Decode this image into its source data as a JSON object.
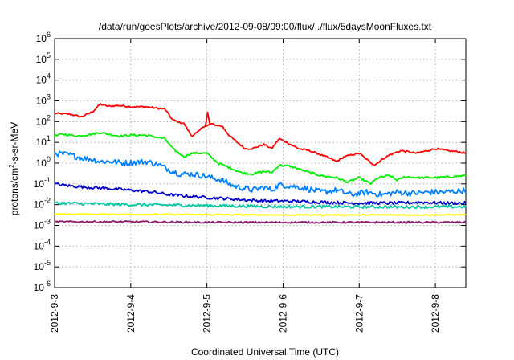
{
  "chart_data": {
    "type": "line",
    "title": "/data/run/goesPlots/archive/2012-09-08/09:00/flux/../flux/5daysMoonFluxes.txt",
    "xlabel": "Coordinated Universal Time (UTC)",
    "ylabel": {
      "base": "protons/cm",
      "exp": "2",
      "rest": "-s-sr-MeV"
    },
    "yscale": "log",
    "ylim_exp": [
      -6,
      6
    ],
    "xlim_days": [
      0,
      5.4
    ],
    "grid": true,
    "x_ticks": [
      {
        "day": 0,
        "label": "2012-9-3"
      },
      {
        "day": 1,
        "label": "2012-9-4"
      },
      {
        "day": 2,
        "label": "2012-9-5"
      },
      {
        "day": 3,
        "label": "2012-9-6"
      },
      {
        "day": 4,
        "label": "2012-9-7"
      },
      {
        "day": 5,
        "label": "2012-9-8"
      }
    ],
    "y_ticks": [
      {
        "exp": 6,
        "base": "10",
        "sup": "6"
      },
      {
        "exp": 5,
        "base": "10",
        "sup": "5"
      },
      {
        "exp": 4,
        "base": "10",
        "sup": "4"
      },
      {
        "exp": 3,
        "base": "10",
        "sup": "3"
      },
      {
        "exp": 2,
        "base": "10",
        "sup": "2"
      },
      {
        "exp": 1,
        "base": "10",
        "sup": "1"
      },
      {
        "exp": 0,
        "base": "10",
        "sup": "0"
      },
      {
        "exp": -1,
        "base": "10",
        "sup": "-1"
      },
      {
        "exp": -2,
        "base": "10",
        "sup": "-2"
      },
      {
        "exp": -3,
        "base": "10",
        "sup": "-3"
      },
      {
        "exp": -4,
        "base": "10",
        "sup": "-4"
      },
      {
        "exp": -5,
        "base": "10",
        "sup": "-5"
      },
      {
        "exp": -6,
        "base": "10",
        "sup": "-6"
      }
    ],
    "series": [
      {
        "color": "#ff0000",
        "noise": 0.04,
        "values": [
          [
            0,
            250
          ],
          [
            0.2,
            230
          ],
          [
            0.35,
            170
          ],
          [
            0.5,
            300
          ],
          [
            0.6,
            700
          ],
          [
            0.7,
            550
          ],
          [
            0.85,
            600
          ],
          [
            1.0,
            520
          ],
          [
            1.2,
            520
          ],
          [
            1.45,
            400
          ],
          [
            1.55,
            120
          ],
          [
            1.7,
            80
          ],
          [
            1.8,
            20
          ],
          [
            1.9,
            35
          ],
          [
            1.95,
            60
          ],
          [
            2.0,
            60
          ],
          [
            2.05,
            80
          ],
          [
            2.1,
            70
          ],
          [
            2.2,
            60
          ],
          [
            2.3,
            20
          ],
          [
            2.4,
            10
          ],
          [
            2.5,
            5
          ],
          [
            2.6,
            5
          ],
          [
            2.75,
            8
          ],
          [
            2.85,
            5
          ],
          [
            2.95,
            15
          ],
          [
            3.05,
            10
          ],
          [
            3.2,
            5
          ],
          [
            3.35,
            4
          ],
          [
            3.5,
            2.5
          ],
          [
            3.6,
            1.8
          ],
          [
            3.7,
            1.2
          ],
          [
            3.8,
            2
          ],
          [
            3.9,
            2.5
          ],
          [
            4.0,
            3
          ],
          [
            4.1,
            1.5
          ],
          [
            4.2,
            0.8
          ],
          [
            4.3,
            1.5
          ],
          [
            4.4,
            2.5
          ],
          [
            4.55,
            4
          ],
          [
            4.75,
            3
          ],
          [
            4.9,
            4
          ],
          [
            5.0,
            5
          ],
          [
            5.15,
            4
          ],
          [
            5.3,
            3.5
          ],
          [
            5.4,
            3
          ]
        ]
      },
      {
        "color": "#00ee00",
        "noise": 0.05,
        "values": [
          [
            0,
            20
          ],
          [
            0.1,
            25
          ],
          [
            0.3,
            20
          ],
          [
            0.5,
            25
          ],
          [
            0.6,
            30
          ],
          [
            0.7,
            25
          ],
          [
            0.85,
            20
          ],
          [
            1.0,
            22
          ],
          [
            1.2,
            22
          ],
          [
            1.45,
            15
          ],
          [
            1.55,
            5
          ],
          [
            1.7,
            2
          ],
          [
            1.8,
            3
          ],
          [
            2.0,
            3
          ],
          [
            2.05,
            2
          ],
          [
            2.15,
            1
          ],
          [
            2.3,
            0.6
          ],
          [
            2.45,
            0.35
          ],
          [
            2.6,
            0.3
          ],
          [
            2.75,
            0.4
          ],
          [
            2.85,
            0.35
          ],
          [
            2.95,
            0.8
          ],
          [
            3.1,
            0.7
          ],
          [
            3.3,
            0.4
          ],
          [
            3.5,
            0.25
          ],
          [
            3.7,
            0.2
          ],
          [
            3.85,
            0.12
          ],
          [
            4.0,
            0.2
          ],
          [
            4.15,
            0.1
          ],
          [
            4.25,
            0.2
          ],
          [
            4.4,
            0.25
          ],
          [
            4.5,
            0.15
          ],
          [
            4.6,
            0.22
          ],
          [
            4.8,
            0.2
          ],
          [
            5.0,
            0.2
          ],
          [
            5.2,
            0.22
          ],
          [
            5.4,
            0.25
          ]
        ]
      },
      {
        "color": "#0080ff",
        "noise": 0.14,
        "values": [
          [
            0,
            3
          ],
          [
            0.2,
            2.5
          ],
          [
            0.35,
            1.8
          ],
          [
            0.5,
            1.5
          ],
          [
            0.6,
            1.2
          ],
          [
            0.75,
            1.2
          ],
          [
            0.9,
            1
          ],
          [
            1.05,
            1.1
          ],
          [
            1.2,
            1.2
          ],
          [
            1.35,
            0.9
          ],
          [
            1.5,
            0.5
          ],
          [
            1.65,
            0.3
          ],
          [
            1.8,
            0.3
          ],
          [
            1.95,
            0.25
          ],
          [
            2.05,
            0.2
          ],
          [
            2.2,
            0.15
          ],
          [
            2.35,
            0.08
          ],
          [
            2.5,
            0.06
          ],
          [
            2.6,
            0.05
          ],
          [
            2.75,
            0.07
          ],
          [
            2.85,
            0.05
          ],
          [
            2.95,
            0.09
          ],
          [
            3.1,
            0.08
          ],
          [
            3.3,
            0.06
          ],
          [
            3.5,
            0.04
          ],
          [
            3.7,
            0.05
          ],
          [
            3.9,
            0.03
          ],
          [
            4.1,
            0.04
          ],
          [
            4.3,
            0.03
          ],
          [
            4.5,
            0.04
          ],
          [
            4.7,
            0.035
          ],
          [
            4.9,
            0.04
          ],
          [
            5.1,
            0.04
          ],
          [
            5.3,
            0.045
          ],
          [
            5.4,
            0.05
          ]
        ]
      },
      {
        "color": "#0000cc",
        "noise": 0.07,
        "values": [
          [
            0,
            0.1
          ],
          [
            0.2,
            0.08
          ],
          [
            0.4,
            0.07
          ],
          [
            0.7,
            0.06
          ],
          [
            1.0,
            0.05
          ],
          [
            1.3,
            0.04
          ],
          [
            1.5,
            0.03
          ],
          [
            1.8,
            0.025
          ],
          [
            2.0,
            0.022
          ],
          [
            2.2,
            0.02
          ],
          [
            2.4,
            0.018
          ],
          [
            2.6,
            0.016
          ],
          [
            2.8,
            0.015
          ],
          [
            3.0,
            0.015
          ],
          [
            3.3,
            0.014
          ],
          [
            3.6,
            0.013
          ],
          [
            3.9,
            0.012
          ],
          [
            4.2,
            0.012
          ],
          [
            4.5,
            0.012
          ],
          [
            4.8,
            0.013
          ],
          [
            5.1,
            0.012
          ],
          [
            5.4,
            0.012
          ]
        ]
      },
      {
        "color": "#00c8a0",
        "noise": 0.07,
        "values": [
          [
            0,
            0.012
          ],
          [
            0.5,
            0.011
          ],
          [
            1.0,
            0.01
          ],
          [
            1.5,
            0.0095
          ],
          [
            2.0,
            0.009
          ],
          [
            2.5,
            0.0085
          ],
          [
            3.0,
            0.008
          ],
          [
            3.5,
            0.008
          ],
          [
            4.0,
            0.0078
          ],
          [
            4.5,
            0.0078
          ],
          [
            5.0,
            0.0078
          ],
          [
            5.4,
            0.008
          ]
        ]
      },
      {
        "color": "#ffff00",
        "noise": 0.03,
        "values": [
          [
            0,
            0.0035
          ],
          [
            1.0,
            0.0034
          ],
          [
            2.0,
            0.0033
          ],
          [
            3.0,
            0.0032
          ],
          [
            4.0,
            0.0032
          ],
          [
            5.0,
            0.0032
          ],
          [
            5.4,
            0.0033
          ]
        ]
      },
      {
        "color": "#8b1a6b",
        "noise": 0.04,
        "values": [
          [
            0,
            0.0015
          ],
          [
            1.0,
            0.0015
          ],
          [
            2.0,
            0.0014
          ],
          [
            3.0,
            0.0014
          ],
          [
            4.0,
            0.0014
          ],
          [
            5.0,
            0.0014
          ],
          [
            5.4,
            0.0014
          ]
        ]
      }
    ]
  }
}
